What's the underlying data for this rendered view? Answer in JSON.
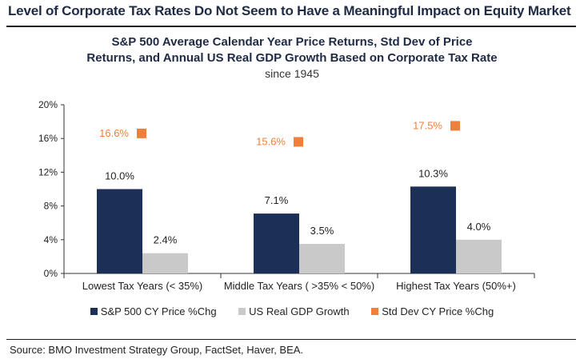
{
  "header": {
    "title": "Level of Corporate Tax Rates Do Not Seem to Have a Meaningful Impact on Equity Market"
  },
  "chart_data": {
    "type": "bar",
    "title_line1": "S&P 500 Average Calendar Year Price Returns, Std Dev of Price",
    "title_line2": "Returns, and Annual US Real GDP Growth Based on Corporate Tax Rate",
    "subtitle": "since 1945",
    "categories": [
      "Lowest Tax Years (< 35%)",
      "Middle Tax Years ( >35% < 50%)",
      "Highest Tax Years (50%+)"
    ],
    "series": [
      {
        "name": "S&P 500 CY Price %Chg",
        "kind": "bar",
        "color": "#1b2f57",
        "values": [
          10.0,
          7.1,
          10.3
        ],
        "labels": [
          "10.0%",
          "7.1%",
          "10.3%"
        ]
      },
      {
        "name": "US Real GDP Growth",
        "kind": "bar",
        "color": "#c9c9c9",
        "values": [
          2.4,
          3.5,
          4.0
        ],
        "labels": [
          "2.4%",
          "3.5%",
          "4.0%"
        ]
      },
      {
        "name": "Std Dev CY Price %Chg",
        "kind": "marker",
        "color": "#f07f3c",
        "values": [
          16.6,
          15.6,
          17.5
        ],
        "labels": [
          "16.6%",
          "15.6%",
          "17.5%"
        ]
      }
    ],
    "ylim": [
      0,
      20
    ],
    "yticks": [
      0,
      4,
      8,
      12,
      16,
      20
    ],
    "ytick_labels": [
      "0%",
      "4%",
      "8%",
      "12%",
      "16%",
      "20%"
    ],
    "xlabel": "",
    "ylabel": "",
    "legend_position": "bottom"
  },
  "footer": {
    "source": "Source: BMO Investment Strategy Group, FactSet, Haver, BEA."
  }
}
